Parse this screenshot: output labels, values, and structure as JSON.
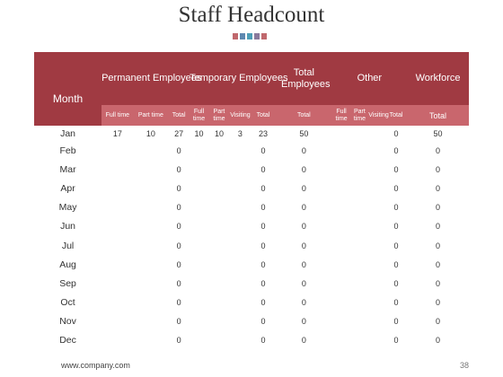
{
  "title": "Staff Headcount",
  "dot_colors": [
    "#c0686d",
    "#5e88b0",
    "#4f9fb8",
    "#8a7a9c",
    "#c0686d"
  ],
  "header": {
    "month": "Month",
    "groups": [
      "Permanent Employees",
      "Temporary Employees",
      "Total Employees",
      "Other",
      "Workforce"
    ],
    "sub": [
      "Full time",
      "Part time",
      "Total",
      "Full time",
      "Part time",
      "Visiting",
      "Total",
      "Total",
      "Full time",
      "Part time",
      "Visiting",
      "Total",
      "Total"
    ]
  },
  "rows": [
    {
      "month": "Jan",
      "vals": [
        "17",
        "10",
        "27",
        "10",
        "10",
        "3",
        "23",
        "50",
        "",
        "",
        "",
        "0",
        "50"
      ]
    },
    {
      "month": "Feb",
      "vals": [
        "",
        "",
        "0",
        "",
        "",
        "",
        "0",
        "0",
        "",
        "",
        "",
        "0",
        "0"
      ]
    },
    {
      "month": "Mar",
      "vals": [
        "",
        "",
        "0",
        "",
        "",
        "",
        "0",
        "0",
        "",
        "",
        "",
        "0",
        "0"
      ]
    },
    {
      "month": "Apr",
      "vals": [
        "",
        "",
        "0",
        "",
        "",
        "",
        "0",
        "0",
        "",
        "",
        "",
        "0",
        "0"
      ]
    },
    {
      "month": "May",
      "vals": [
        "",
        "",
        "0",
        "",
        "",
        "",
        "0",
        "0",
        "",
        "",
        "",
        "0",
        "0"
      ]
    },
    {
      "month": "Jun",
      "vals": [
        "",
        "",
        "0",
        "",
        "",
        "",
        "0",
        "0",
        "",
        "",
        "",
        "0",
        "0"
      ]
    },
    {
      "month": "Jul",
      "vals": [
        "",
        "",
        "0",
        "",
        "",
        "",
        "0",
        "0",
        "",
        "",
        "",
        "0",
        "0"
      ]
    },
    {
      "month": "Aug",
      "vals": [
        "",
        "",
        "0",
        "",
        "",
        "",
        "0",
        "0",
        "",
        "",
        "",
        "0",
        "0"
      ]
    },
    {
      "month": "Sep",
      "vals": [
        "",
        "",
        "0",
        "",
        "",
        "",
        "0",
        "0",
        "",
        "",
        "",
        "0",
        "0"
      ]
    },
    {
      "month": "Oct",
      "vals": [
        "",
        "",
        "0",
        "",
        "",
        "",
        "0",
        "0",
        "",
        "",
        "",
        "0",
        "0"
      ]
    },
    {
      "month": "Nov",
      "vals": [
        "",
        "",
        "0",
        "",
        "",
        "",
        "0",
        "0",
        "",
        "",
        "",
        "0",
        "0"
      ]
    },
    {
      "month": "Dec",
      "vals": [
        "",
        "",
        "0",
        "",
        "",
        "",
        "0",
        "0",
        "",
        "",
        "",
        "0",
        "0"
      ]
    }
  ],
  "footer": {
    "website": "www.company.com",
    "page_number": "38"
  }
}
